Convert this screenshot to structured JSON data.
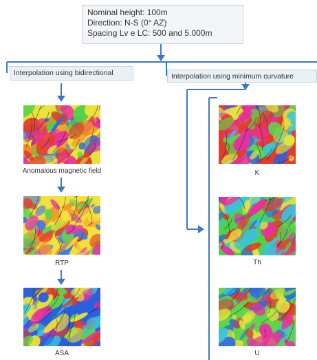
{
  "header": {
    "line1": "Nominal height: 100m",
    "line2": "Direction: N-S (0° AZ)",
    "line3": "Spacing Lv e LC: 500 and 5.000m"
  },
  "branches": {
    "left_label": "Interpolation using bidirectional",
    "right_label": "Interpolation using minimum curvature"
  },
  "left_maps": [
    {
      "caption": "Anomalous magnetic field",
      "palette": [
        "#e8e23c",
        "#4fd24a",
        "#e33b2c",
        "#2c6be0",
        "#e7309f",
        "#f08a25"
      ]
    },
    {
      "caption": "RTP",
      "palette": [
        "#f2e13a",
        "#e8402c",
        "#3b7be6",
        "#5fd44c",
        "#f39a28",
        "#e33aa8"
      ]
    },
    {
      "caption": "ASA",
      "palette": [
        "#2c5fe0",
        "#5fd44c",
        "#e8e23c",
        "#e33b2c",
        "#39c4d8",
        "#e7309f"
      ]
    }
  ],
  "right_maps": [
    {
      "caption": "K",
      "palette": [
        "#e33b2c",
        "#2c5fe0",
        "#5fd44c",
        "#e7309f",
        "#39c4d8",
        "#e8e23c"
      ]
    },
    {
      "caption": "Th",
      "palette": [
        "#4fd24a",
        "#e33b2c",
        "#39c4d8",
        "#e8e23c",
        "#2c5fe0",
        "#e7309f"
      ]
    },
    {
      "caption": "U",
      "palette": [
        "#5fd44c",
        "#e33b2c",
        "#e8e23c",
        "#2c6be0",
        "#e7309f",
        "#39c4d8"
      ]
    }
  ],
  "colors": {
    "connector": "#3a78c9",
    "box_fill": "#f3f5f7",
    "branch_fill": "#e9f1f6"
  }
}
